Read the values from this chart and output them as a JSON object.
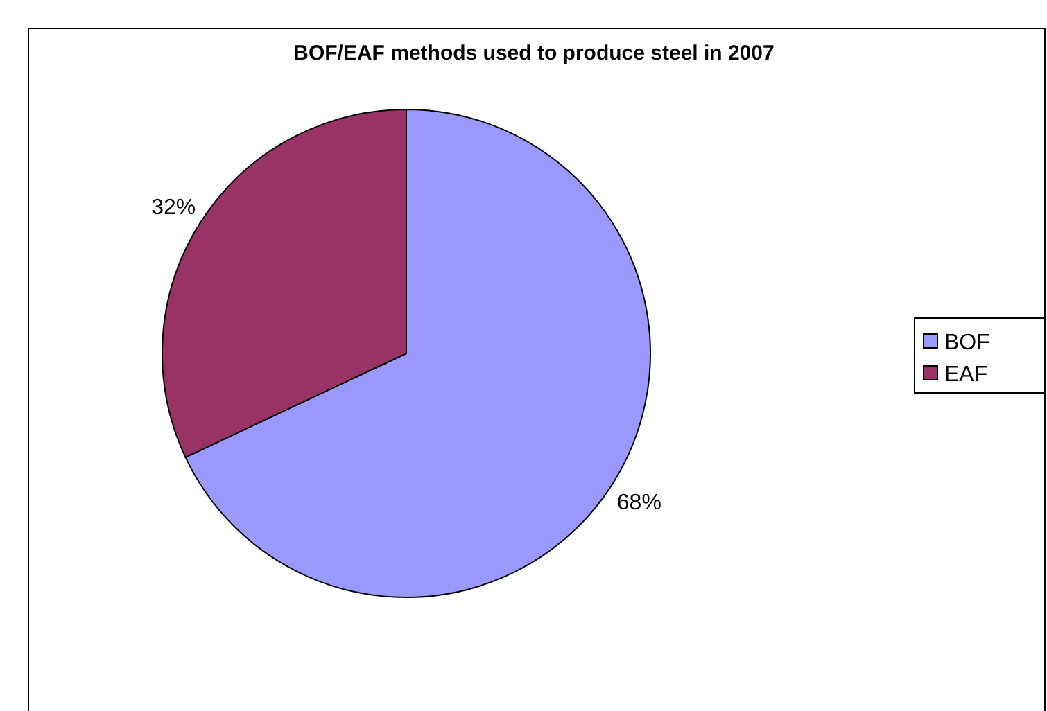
{
  "chart_data": {
    "type": "pie",
    "title": "BOF/EAF methods used to produce steel in 2007",
    "categories": [
      "BOF",
      "EAF"
    ],
    "values": [
      68,
      32
    ],
    "colors": [
      "#9999ff",
      "#993366"
    ],
    "value_labels": [
      "68%",
      "32%"
    ],
    "legend": "right"
  }
}
